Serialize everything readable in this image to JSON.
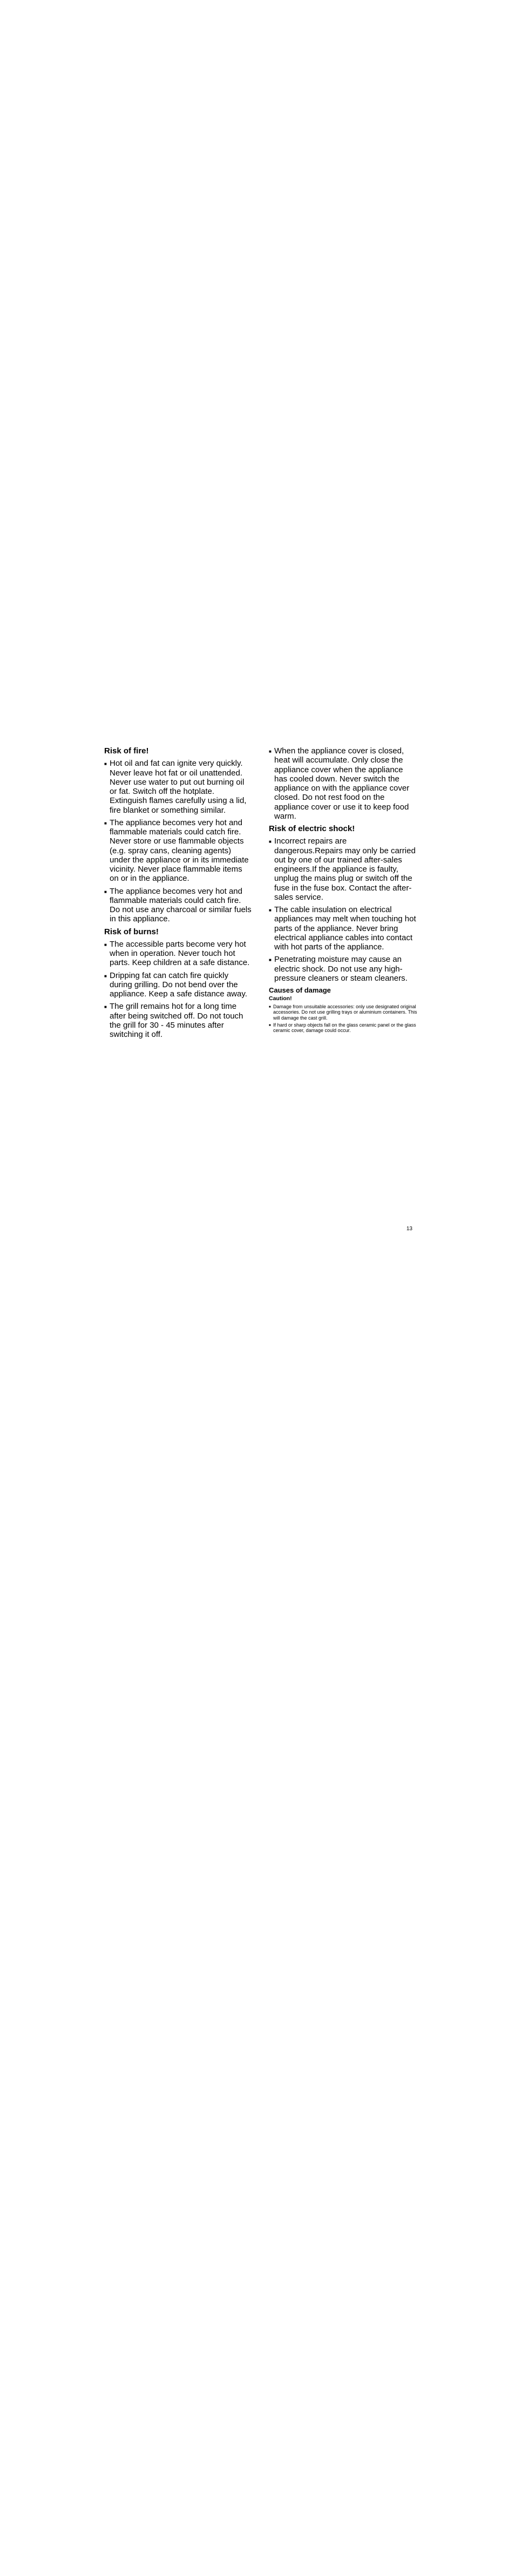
{
  "typography": {
    "body_fontsize": 15,
    "heading_fontsize": 15,
    "sub_heading_fontsize": 13,
    "small_heading_fontsize": 10.5,
    "small_text_fontsize": 9,
    "page_num_fontsize": 10,
    "line_height": 1.15,
    "small_line_height": 1.15
  },
  "colors": {
    "text": "#000000",
    "background": "#ffffff"
  },
  "left_column": {
    "heading1": "Risk of fire!",
    "bullets1": [
      "Hot oil and fat can ignite very quickly. Never leave hot fat or oil unattended. Never use water to put out burning oil or fat. Switch off the hotplate. Extinguish flames carefully using a lid, fire blanket or something similar.",
      "The appliance becomes very hot and flammable materials could catch fire. Never store or use flammable objects (e.g. spray cans, cleaning agents) under the appliance or in its immediate vicinity. Never place flammable items on or in the appliance.",
      "The appliance becomes very hot and flammable materials could catch fire. Do not use any charcoal or similar fuels in this appliance."
    ],
    "heading2": "Risk of burns!",
    "bullets2": [
      "The accessible parts become very hot when in operation. Never touch hot parts. Keep children at a safe distance.",
      "Dripping fat can catch fire quickly during grilling. Do not bend over the appliance. Keep a safe distance away.",
      "The grill remains hot for a long time after being switched off. Do not touch the grill for 30 - 45 minutes after switching it off."
    ]
  },
  "right_column": {
    "bullets0": [
      "When the appliance cover is closed, heat will accumulate. Only close the appliance cover when the appliance has cooled down. Never switch the appliance on with the appliance cover closed. Do not rest food on the appliance cover or use it to keep food warm."
    ],
    "heading1": "Risk of electric shock!",
    "bullets1": [
      "Incorrect repairs are dangerous.Repairs may only be carried out by one of our trained after-sales engineers.If the appliance is faulty, unplug the mains plug or switch off the fuse in the fuse box. Contact the after-sales service.",
      "The cable insulation on electrical appliances may melt when touching hot parts of the appliance. Never bring electrical appliance cables into contact with hot parts of the appliance.",
      "Penetrating moisture may cause an electric shock. Do not use any high-pressure cleaners or steam cleaners."
    ],
    "sub_heading": "Causes of damage",
    "small_heading": "Caution!",
    "small_bullets": [
      "Damage from unsuitable accessories: only use designated original accessories. Do not use grilling trays or aluminium containers. This will damage the cast grill.",
      "If hard or sharp objects fall on the glass ceramic panel or the glass ceramic cover, damage could occur."
    ]
  },
  "page_number": "13",
  "bullet_char": "■"
}
